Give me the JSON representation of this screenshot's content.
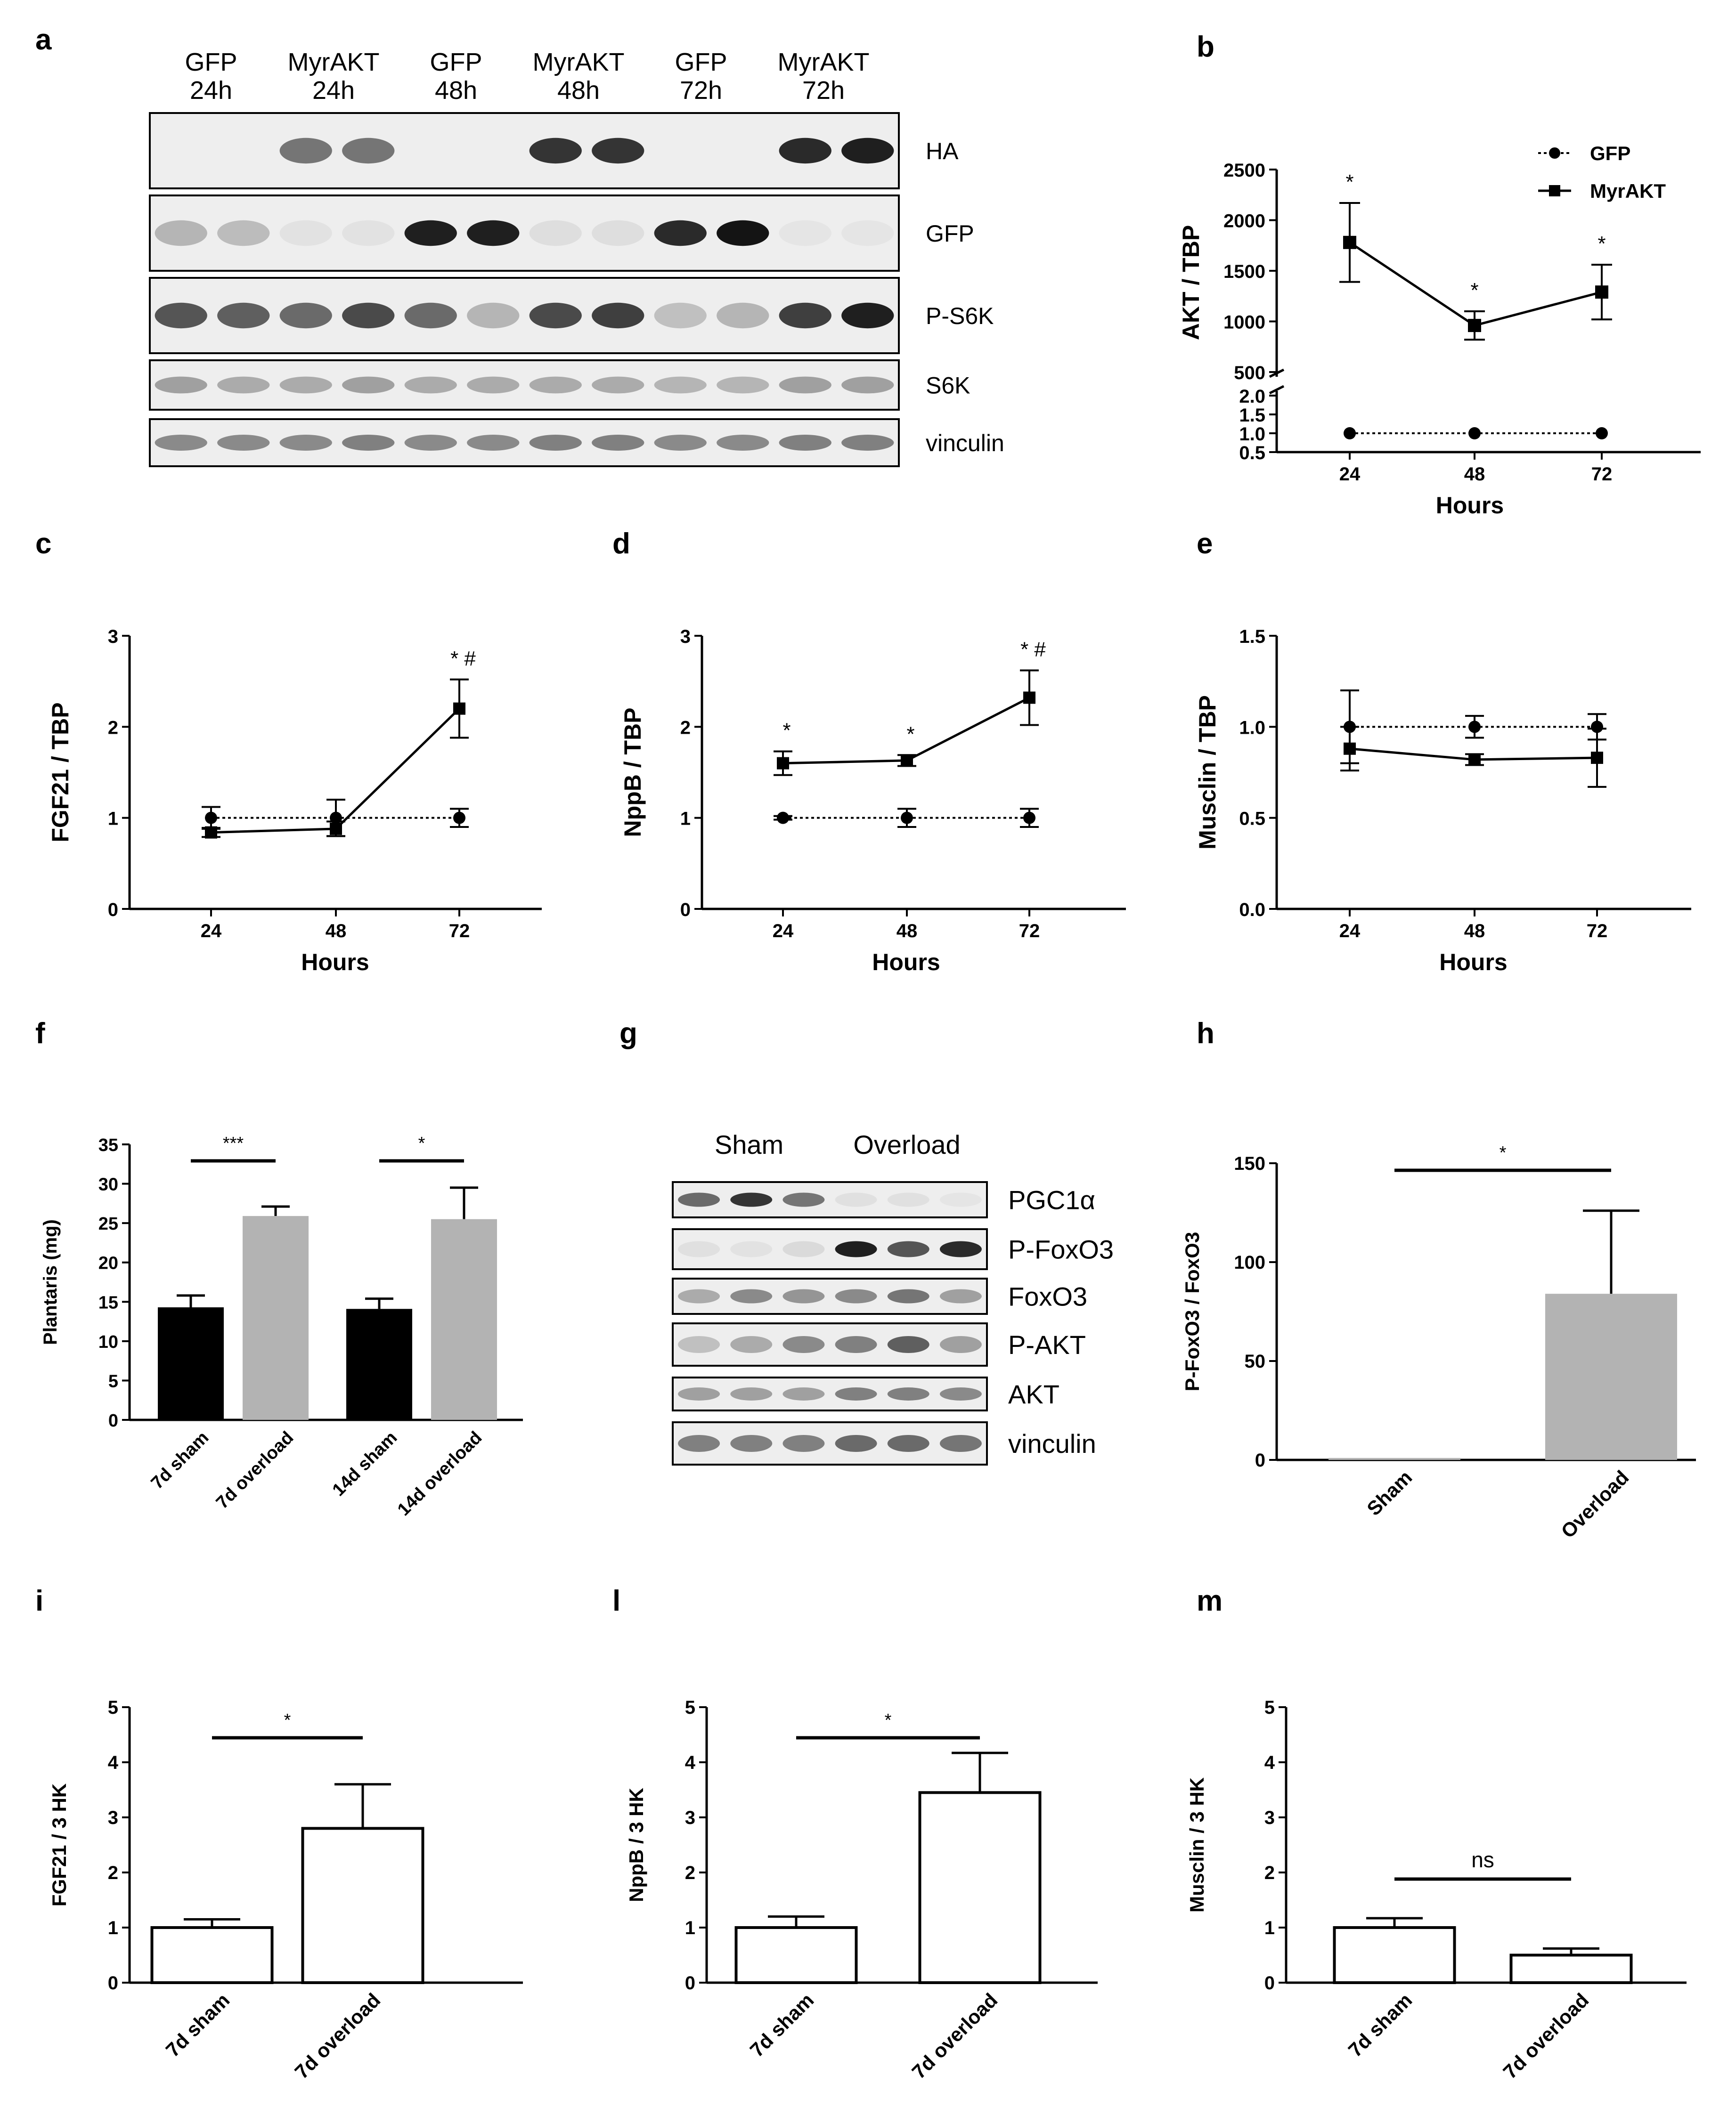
{
  "panel_letters": {
    "a": "a",
    "b": "b",
    "c": "c",
    "d": "d",
    "e": "e",
    "f": "f",
    "g": "g",
    "h": "h",
    "i": "i",
    "l": "l",
    "m": "m"
  },
  "chart_data": [
    {
      "id": "a",
      "type": "blot",
      "lanes": [
        {
          "top": "GFP",
          "bottom": "24h"
        },
        {
          "top": "MyrAKT",
          "bottom": "24h"
        },
        {
          "top": "GFP",
          "bottom": "48h"
        },
        {
          "top": "MyrAKT",
          "bottom": "48h"
        },
        {
          "top": "GFP",
          "bottom": "72h"
        },
        {
          "top": "MyrAKT",
          "bottom": "72h"
        }
      ],
      "rows": [
        {
          "label": "HA",
          "intensity": [
            0,
            0,
            0.55,
            0.55,
            0,
            0,
            0.85,
            0.85,
            0,
            0,
            0.9,
            0.95
          ]
        },
        {
          "label": "GFP",
          "intensity": [
            0.25,
            0.22,
            0.04,
            0.04,
            0.95,
            0.95,
            0.06,
            0.06,
            0.9,
            1.0,
            0.03,
            0.03
          ]
        },
        {
          "label": "P-S6K",
          "intensity": [
            0.7,
            0.65,
            0.6,
            0.75,
            0.6,
            0.25,
            0.75,
            0.8,
            0.2,
            0.25,
            0.8,
            0.95
          ]
        },
        {
          "label": "S6K",
          "intensity": [
            0.35,
            0.3,
            0.3,
            0.35,
            0.3,
            0.3,
            0.3,
            0.3,
            0.25,
            0.25,
            0.35,
            0.35
          ]
        },
        {
          "label": "vinculin",
          "intensity": [
            0.45,
            0.45,
            0.45,
            0.5,
            0.45,
            0.45,
            0.5,
            0.5,
            0.45,
            0.45,
            0.5,
            0.5
          ]
        }
      ]
    },
    {
      "id": "b",
      "type": "line",
      "ylabel": "AKT / TBP",
      "xlabel": "Hours",
      "x": [
        24,
        48,
        72
      ],
      "series": [
        {
          "name": "GFP",
          "values": [
            1,
            1,
            1
          ],
          "err": [
            0.02,
            0.02,
            0.02
          ],
          "marker": "circle",
          "dash": true
        },
        {
          "name": "MyrAKT",
          "values": [
            1780,
            960,
            1290
          ],
          "err": [
            390,
            140,
            270
          ],
          "marker": "square",
          "dash": false
        }
      ],
      "sig": [
        "*",
        "*",
        "*"
      ],
      "upper_ticks": [
        "500",
        "1000",
        "1500",
        "2000",
        "2500"
      ],
      "lower_ticks": [
        "0.5",
        "1.0",
        "1.5",
        "2.0"
      ],
      "ylim_upper": [
        500,
        2500
      ],
      "ylim_lower": [
        0.5,
        2.0
      ]
    },
    {
      "id": "c",
      "type": "line",
      "ylabel": "FGF21 / TBP",
      "xlabel": "Hours",
      "x": [
        24,
        48,
        72
      ],
      "ylim": [
        0,
        3
      ],
      "yticks": [
        "0",
        "1",
        "2",
        "3"
      ],
      "series": [
        {
          "name": "GFP",
          "values": [
            1.0,
            1.0,
            1.0
          ],
          "err": [
            0.12,
            0.2,
            0.1
          ],
          "marker": "circle",
          "dash": true
        },
        {
          "name": "MyrAKT",
          "values": [
            0.84,
            0.88,
            2.2
          ],
          "err": [
            0.05,
            0.08,
            0.32
          ],
          "marker": "square",
          "dash": false
        }
      ],
      "sig": [
        "",
        "",
        "* #"
      ]
    },
    {
      "id": "d",
      "type": "line",
      "ylabel": "NppB / TBP",
      "xlabel": "Hours",
      "x": [
        24,
        48,
        72
      ],
      "ylim": [
        0,
        3
      ],
      "yticks": [
        "0",
        "1",
        "2",
        "3"
      ],
      "series": [
        {
          "name": "GFP",
          "values": [
            1.0,
            1.0,
            1.0
          ],
          "err": [
            0.02,
            0.1,
            0.1
          ],
          "marker": "circle",
          "dash": true
        },
        {
          "name": "MyrAKT",
          "values": [
            1.6,
            1.63,
            2.32
          ],
          "err": [
            0.13,
            0.06,
            0.3
          ],
          "marker": "square",
          "dash": false
        }
      ],
      "sig": [
        "*",
        "*",
        "* #"
      ]
    },
    {
      "id": "e",
      "type": "line",
      "ylabel": "Musclin / TBP",
      "xlabel": "Hours",
      "x": [
        24,
        48,
        72
      ],
      "ylim": [
        0,
        1.5
      ],
      "yticks": [
        "0.0",
        "0.5",
        "1.0",
        "1.5"
      ],
      "series": [
        {
          "name": "GFP",
          "values": [
            1.0,
            1.0,
            1.0
          ],
          "err": [
            0.2,
            0.06,
            0.07
          ],
          "marker": "circle",
          "dash": true
        },
        {
          "name": "MyrAKT",
          "values": [
            0.88,
            0.82,
            0.83
          ],
          "err": [
            0.12,
            0.03,
            0.16
          ],
          "marker": "square",
          "dash": false
        }
      ],
      "sig": [
        "",
        "",
        ""
      ]
    },
    {
      "id": "f",
      "type": "bar",
      "ylabel": "Plantaris (mg)",
      "categories": [
        "7d sham",
        "7d overload",
        "14d sham",
        "14d overload"
      ],
      "values": [
        14.3,
        25.9,
        14.1,
        25.5
      ],
      "err": [
        1.5,
        1.2,
        1.3,
        4.0
      ],
      "colors": [
        "#000000",
        "#b3b3b3",
        "#000000",
        "#b3b3b3"
      ],
      "ylim": [
        0,
        35
      ],
      "yticks": [
        "0",
        "5",
        "10",
        "15",
        "20",
        "25",
        "30",
        "35"
      ],
      "sig": [
        {
          "from": 0,
          "to": 1,
          "text": "***"
        },
        {
          "from": 2,
          "to": 3,
          "text": "*"
        }
      ]
    },
    {
      "id": "g",
      "type": "blot",
      "groups": [
        "Sham",
        "Overload"
      ],
      "rows": [
        {
          "label": "PGC1α",
          "intensity": [
            0.6,
            0.85,
            0.55,
            0.05,
            0.05,
            0.03
          ]
        },
        {
          "label": "P-FoxO3",
          "intensity": [
            0.05,
            0.04,
            0.08,
            0.95,
            0.7,
            0.9
          ]
        },
        {
          "label": "FoxO3",
          "intensity": [
            0.3,
            0.45,
            0.4,
            0.45,
            0.55,
            0.35
          ]
        },
        {
          "label": "P-AKT",
          "intensity": [
            0.2,
            0.3,
            0.45,
            0.5,
            0.65,
            0.35
          ]
        },
        {
          "label": "AKT",
          "intensity": [
            0.35,
            0.35,
            0.35,
            0.5,
            0.5,
            0.45
          ]
        },
        {
          "label": "vinculin",
          "intensity": [
            0.5,
            0.5,
            0.5,
            0.6,
            0.6,
            0.55
          ]
        }
      ]
    },
    {
      "id": "h",
      "type": "bar",
      "ylabel": "P-FoxO3 / FoxO3",
      "categories": [
        "Sham",
        "Overload"
      ],
      "values": [
        1,
        84
      ],
      "err": [
        0,
        42
      ],
      "colors": [
        "#b3b3b3",
        "#b3b3b3"
      ],
      "ylim": [
        0,
        150
      ],
      "yticks": [
        "0",
        "50",
        "100",
        "150"
      ],
      "sig": [
        {
          "from": 0,
          "to": 1,
          "text": "*"
        }
      ]
    },
    {
      "id": "i",
      "type": "bar",
      "ylabel": "FGF21 / 3 HK",
      "categories": [
        "7d sham",
        "7d overload"
      ],
      "values": [
        1.0,
        2.8
      ],
      "err": [
        0.15,
        0.8
      ],
      "colors": [
        "#ffffff",
        "#ffffff"
      ],
      "ylim": [
        0,
        5
      ],
      "yticks": [
        "0",
        "1",
        "2",
        "3",
        "4",
        "5"
      ],
      "sig": [
        {
          "from": 0,
          "to": 1,
          "text": "*"
        }
      ]
    },
    {
      "id": "l",
      "type": "bar",
      "ylabel": "NppB / 3 HK",
      "categories": [
        "7d sham",
        "7d overload"
      ],
      "values": [
        1.0,
        3.45
      ],
      "err": [
        0.2,
        0.72
      ],
      "colors": [
        "#ffffff",
        "#ffffff"
      ],
      "ylim": [
        0,
        5
      ],
      "yticks": [
        "0",
        "1",
        "2",
        "3",
        "4",
        "5"
      ],
      "sig": [
        {
          "from": 0,
          "to": 1,
          "text": "*"
        }
      ]
    },
    {
      "id": "m",
      "type": "bar",
      "ylabel": "Musclin / 3 HK",
      "categories": [
        "7d sham",
        "7d overload"
      ],
      "values": [
        1.0,
        0.5
      ],
      "err": [
        0.17,
        0.12
      ],
      "colors": [
        "#ffffff",
        "#ffffff"
      ],
      "ylim": [
        0,
        5
      ],
      "yticks": [
        "0",
        "1",
        "2",
        "3",
        "4",
        "5"
      ],
      "sig": [
        {
          "from": 0,
          "to": 1,
          "text": "ns"
        }
      ]
    }
  ]
}
